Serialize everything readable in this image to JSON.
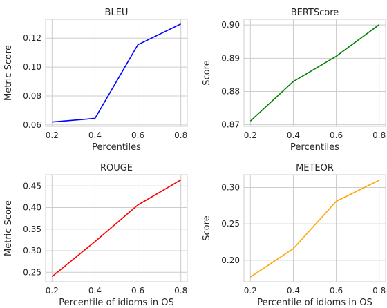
{
  "chart_data": [
    {
      "type": "line",
      "title": "BLEU",
      "xlabel": "Percentiles",
      "ylabel": "Metric Score",
      "x": [
        0.2,
        0.4,
        0.6,
        0.8
      ],
      "xticks": [
        "0.2",
        "0.4",
        "0.6",
        "0.8"
      ],
      "yticks": [
        "0.06",
        "0.08",
        "0.10",
        "0.12"
      ],
      "xlim": [
        0.17,
        0.83
      ],
      "ylim": [
        0.059,
        0.133
      ],
      "grid": true,
      "series": [
        {
          "values": [
            0.062,
            0.0645,
            0.1155,
            0.1298
          ],
          "color": "#0000ff"
        }
      ]
    },
    {
      "type": "line",
      "title": "BERTScore",
      "xlabel": "Percentiles",
      "ylabel": "Score",
      "x": [
        0.2,
        0.4,
        0.6,
        0.8
      ],
      "xticks": [
        "0.2",
        "0.4",
        "0.6",
        "0.8"
      ],
      "yticks": [
        "0.87",
        "0.88",
        "0.89",
        "0.90"
      ],
      "xlim": [
        0.17,
        0.83
      ],
      "ylim": [
        0.8695,
        0.9017
      ],
      "grid": true,
      "series": [
        {
          "values": [
            0.8711,
            0.883,
            0.8906,
            0.9001
          ],
          "color": "#008000"
        }
      ]
    },
    {
      "type": "line",
      "title": "ROUGE",
      "xlabel": "Percentile of idioms in OS",
      "ylabel": "Metric Score",
      "x": [
        0.2,
        0.4,
        0.6,
        0.8
      ],
      "xticks": [
        "0.2",
        "0.4",
        "0.6",
        "0.8"
      ],
      "yticks": [
        "0.25",
        "0.30",
        "0.35",
        "0.40",
        "0.45"
      ],
      "xlim": [
        0.17,
        0.83
      ],
      "ylim": [
        0.228,
        0.476
      ],
      "grid": true,
      "series": [
        {
          "values": [
            0.24,
            0.321,
            0.406,
            0.464
          ],
          "color": "#ff0000"
        }
      ]
    },
    {
      "type": "line",
      "title": "METEOR",
      "xlabel": "Percentile of idioms in OS",
      "ylabel": "Score",
      "x": [
        0.2,
        0.4,
        0.6,
        0.8
      ],
      "xticks": [
        "0.2",
        "0.4",
        "0.6",
        "0.8"
      ],
      "yticks": [
        "0.20",
        "0.25",
        "0.30"
      ],
      "xlim": [
        0.17,
        0.83
      ],
      "ylim": [
        0.1705,
        0.3175
      ],
      "grid": true,
      "series": [
        {
          "values": [
            0.177,
            0.216,
            0.281,
            0.31
          ],
          "color": "#ffa500"
        }
      ]
    }
  ]
}
